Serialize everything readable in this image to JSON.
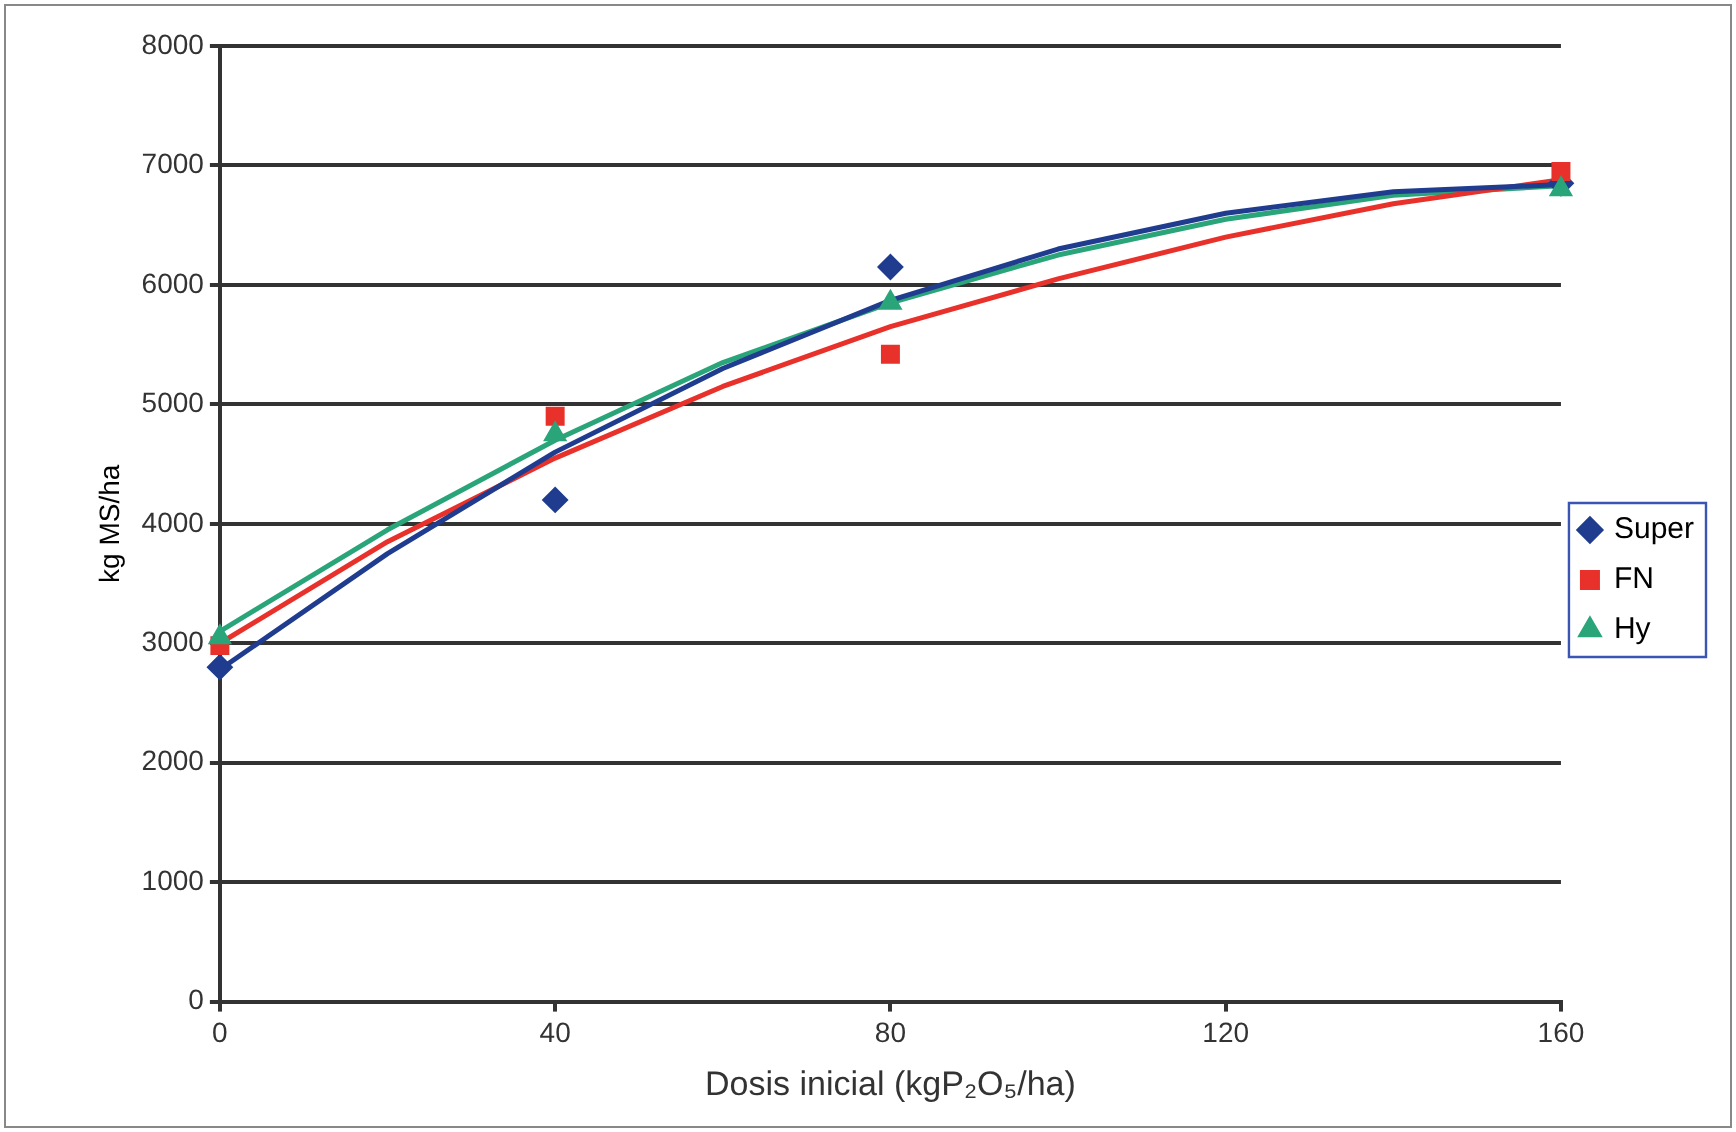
{
  "chart_data": {
    "type": "scatter",
    "xlabel": "Dosis inicial (kgP₂O₅/ha)",
    "ylabel": "kg MS/ha",
    "x": [
      0,
      40,
      80,
      160
    ],
    "xlim": [
      0,
      160
    ],
    "xticks": [
      0,
      40,
      80,
      120,
      160
    ],
    "ylim": [
      0,
      8000
    ],
    "yticks": [
      0,
      1000,
      2000,
      3000,
      4000,
      5000,
      6000,
      7000,
      8000
    ],
    "grid": "y",
    "legend": "right",
    "series": [
      {
        "name": "Super",
        "color": "#1f3c8f",
        "marker": "diamond",
        "values": [
          2800,
          4200,
          6150,
          6850
        ]
      },
      {
        "name": "FN",
        "color": "#e8312a",
        "marker": "square",
        "values": [
          2980,
          4900,
          5420,
          6950
        ]
      },
      {
        "name": "Hy",
        "color": "#2aa57a",
        "marker": "triangle",
        "values": [
          3050,
          4750,
          5850,
          6800
        ]
      },
      {
        "type": "line",
        "color": "#1f3c8f",
        "marker": "none",
        "x": [
          0,
          20,
          40,
          60,
          80,
          100,
          120,
          140,
          160
        ],
        "values": [
          2780,
          3750,
          4600,
          5300,
          5870,
          6300,
          6600,
          6780,
          6840
        ]
      },
      {
        "type": "line",
        "color": "#e8312a",
        "marker": "none",
        "x": [
          0,
          20,
          40,
          60,
          80,
          100,
          120,
          140,
          160
        ],
        "values": [
          3000,
          3850,
          4550,
          5150,
          5650,
          6050,
          6400,
          6680,
          6880
        ]
      },
      {
        "type": "line",
        "color": "#2aa57a",
        "marker": "none",
        "x": [
          0,
          20,
          40,
          60,
          80,
          100,
          120,
          140,
          160
        ],
        "values": [
          3100,
          3950,
          4700,
          5350,
          5850,
          6250,
          6550,
          6750,
          6830
        ]
      }
    ]
  }
}
